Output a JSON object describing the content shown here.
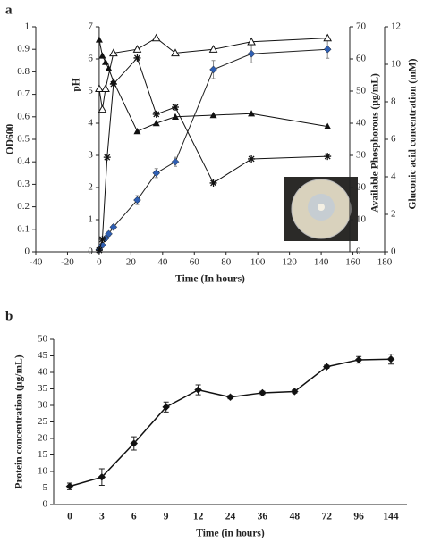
{
  "chart_data": [
    {
      "type": "line",
      "panel": "a",
      "xlabel": "Time (In hours)",
      "xlim": [
        -40,
        180
      ],
      "xticks": [
        -40,
        -20,
        0,
        20,
        40,
        60,
        80,
        100,
        120,
        140,
        160,
        180
      ],
      "ylabel": "OD600",
      "ylim": [
        0,
        1
      ],
      "yticks": [
        0,
        0.1,
        0.2,
        0.3,
        0.4,
        0.5,
        0.6,
        0.7,
        0.8,
        0.9,
        1
      ],
      "y2label": "pH",
      "y2lim": [
        0,
        7
      ],
      "y2ticks": [
        0,
        1,
        2,
        3,
        4,
        5,
        6,
        7
      ],
      "y3label": "Available Phosphorous (µg/mL)",
      "y3lim": [
        0,
        70
      ],
      "y3ticks": [
        0,
        10,
        20,
        30,
        40,
        50,
        60,
        70
      ],
      "y4label": "Gluconic acid concentration (mM)",
      "y4lim": [
        0,
        12
      ],
      "y4ticks": [
        0,
        2,
        4,
        6,
        8,
        10,
        12
      ],
      "series": [
        {
          "axis": "y",
          "marker": "diamond",
          "color": "#2f5fb3",
          "x": [
            0,
            2,
            4,
            6,
            9,
            24,
            36,
            48,
            72,
            96,
            144
          ],
          "values": [
            0.01,
            0.03,
            0.06,
            0.08,
            0.11,
            0.23,
            0.35,
            0.4,
            0.81,
            0.88,
            0.9
          ],
          "errors": [
            0.01,
            0.01,
            0.01,
            0.01,
            0.01,
            0.02,
            0.02,
            0.02,
            0.04,
            0.04,
            0.04
          ]
        },
        {
          "axis": "y2",
          "marker": "triangle",
          "color": "#111111",
          "x": [
            0,
            2,
            4,
            6,
            9,
            24,
            36,
            48,
            72,
            96,
            144
          ],
          "values": [
            6.6,
            6.1,
            5.9,
            5.7,
            5.3,
            3.75,
            4.0,
            4.2,
            4.25,
            4.3,
            3.9
          ]
        },
        {
          "axis": "y3",
          "marker": "star",
          "color": "#111111",
          "x": [
            0,
            2,
            5,
            9,
            24,
            36,
            48,
            72,
            96,
            144
          ],
          "values": [
            0.5,
            3.9,
            29.4,
            52.2,
            60.3,
            42.8,
            45,
            21.4,
            28.9,
            29.7
          ]
        },
        {
          "axis": "y4",
          "marker": "triangle-open",
          "color": "#111111",
          "x": [
            0,
            2,
            4,
            9,
            24,
            36,
            48,
            72,
            96,
            144
          ],
          "values": [
            8.7,
            7.6,
            8.7,
            10.6,
            10.8,
            11.4,
            10.6,
            10.8,
            11.2,
            11.4
          ]
        }
      ]
    },
    {
      "type": "line",
      "panel": "b",
      "xlabel": "Time (in hours)",
      "ylabel": "Protein concentration (µg/mL)",
      "categories": [
        "0",
        "3",
        "6",
        "9",
        "12",
        "24",
        "36",
        "48",
        "72",
        "96",
        "144"
      ],
      "ylim": [
        0,
        50
      ],
      "yticks": [
        0,
        5,
        10,
        15,
        20,
        25,
        30,
        35,
        40,
        45,
        50
      ],
      "series": [
        {
          "marker": "diamond",
          "color": "#111111",
          "values": [
            5.5,
            8.3,
            18.5,
            29.5,
            34.7,
            32.5,
            33.8,
            34.2,
            41.7,
            43.8,
            44
          ],
          "errors": [
            1,
            2.5,
            2,
            1.5,
            1.5,
            0.5,
            0.5,
            0.5,
            0.5,
            1,
            1.5
          ]
        }
      ]
    }
  ]
}
